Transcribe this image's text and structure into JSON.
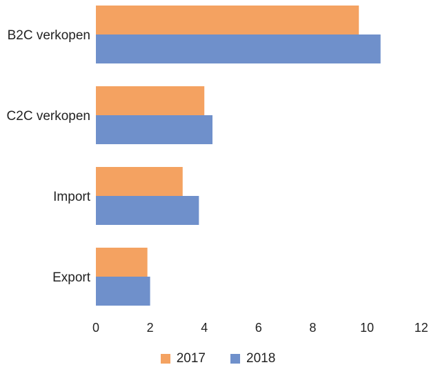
{
  "chart_data": {
    "type": "bar",
    "orientation": "horizontal",
    "categories": [
      "B2C verkopen",
      "C2C verkopen",
      "Import",
      "Export"
    ],
    "series": [
      {
        "name": "2017",
        "color": "#F4A261",
        "values": [
          9.7,
          4.0,
          3.2,
          1.9
        ]
      },
      {
        "name": "2018",
        "color": "#6F90CB",
        "values": [
          10.5,
          4.3,
          3.8,
          2.0
        ]
      }
    ],
    "xticks": [
      "0",
      "2",
      "4",
      "6",
      "8",
      "10",
      "12"
    ],
    "xlim": [
      0,
      12
    ],
    "grid": false,
    "legend_position": "bottom"
  }
}
